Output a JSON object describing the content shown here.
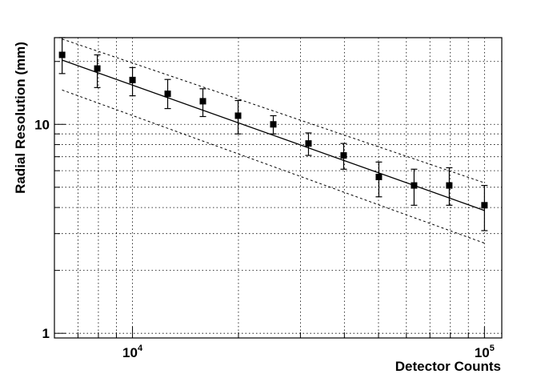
{
  "chart_data": {
    "type": "scatter",
    "title": "",
    "xlabel": "Detector Counts",
    "ylabel": "Radial Resolution (mm)",
    "xscale": "log",
    "yscale": "log",
    "xlim": [
      6000,
      112000
    ],
    "ylim": [
      0.95,
      26
    ],
    "grid": true,
    "x_ticks": [
      {
        "value": 10000,
        "base": "10",
        "exp": "4"
      },
      {
        "value": 100000,
        "base": "10",
        "exp": "5"
      }
    ],
    "y_ticks": [
      {
        "value": 1,
        "label": "1"
      },
      {
        "value": 10,
        "label": "10"
      }
    ],
    "series": [
      {
        "marker": "square",
        "x": [
          6310,
          7943,
          10000,
          12589,
          15849,
          19953,
          25119,
          31623,
          39811,
          50119,
          63096,
          79433,
          100000
        ],
        "y": [
          21.5,
          18.5,
          16.3,
          14.0,
          12.9,
          11.0,
          10.0,
          8.1,
          7.1,
          5.6,
          5.1,
          5.1,
          4.1
        ],
        "err_low": [
          4.0,
          3.5,
          2.6,
          2.1,
          2.0,
          2.0,
          1.0,
          1.0,
          1.0,
          1.1,
          1.0,
          1.0,
          1.0
        ],
        "err_high": [
          4.5,
          3.0,
          2.4,
          2.4,
          1.9,
          2.0,
          1.0,
          1.0,
          1.0,
          1.0,
          1.0,
          1.1,
          1.0
        ]
      }
    ],
    "fit_line": {
      "x": [
        6310,
        100000
      ],
      "y": [
        20.3,
        3.87
      ]
    },
    "band_upper": {
      "x": [
        6310,
        100000
      ],
      "y": [
        25.6,
        5.25
      ]
    },
    "band_lower": {
      "x": [
        6310,
        100000
      ],
      "y": [
        14.6,
        2.7
      ]
    }
  }
}
